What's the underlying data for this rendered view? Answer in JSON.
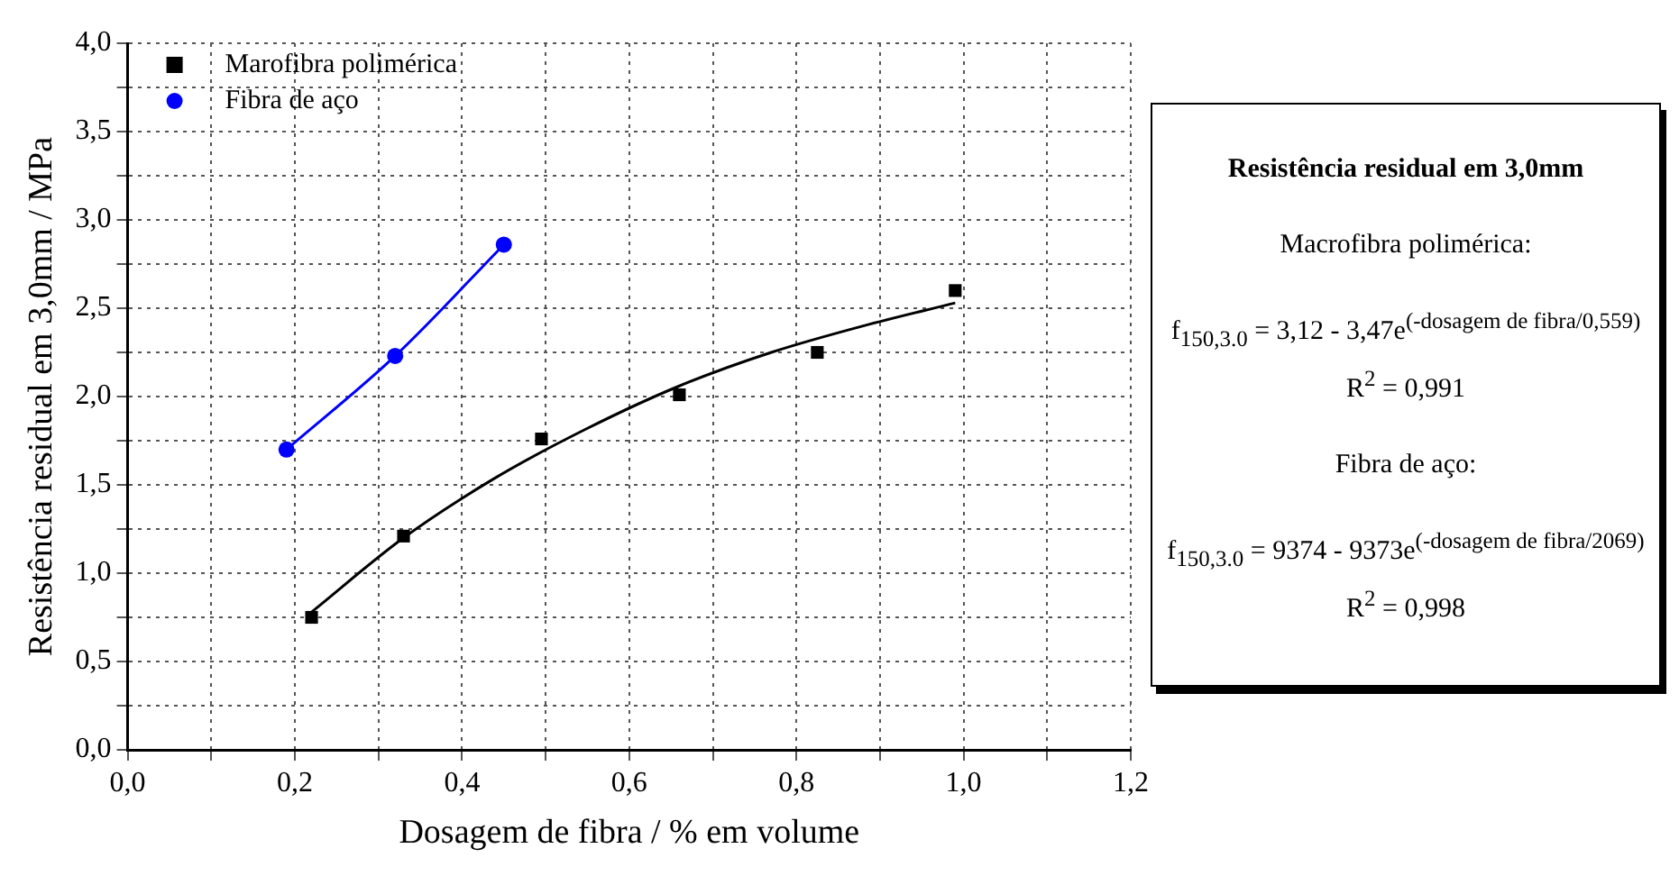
{
  "chart_data": {
    "type": "scatter",
    "xlabel": "Dosagem de fibra / % em volume",
    "ylabel": "Resistência residual em 3,0mm / MPa",
    "series": [
      {
        "name": "Marofibra polimérica",
        "color": "#000000",
        "marker": "square",
        "x": [
          0.22,
          0.33,
          0.495,
          0.66,
          0.825,
          0.99
        ],
        "values": [
          0.75,
          1.21,
          1.76,
          2.01,
          2.25,
          2.6
        ]
      },
      {
        "type": "line",
        "color": "#000000",
        "marker": "none",
        "x": [
          0.22,
          0.33,
          0.44,
          0.55,
          0.66,
          0.77,
          0.88,
          0.99
        ],
        "values": [
          0.78,
          1.2,
          1.54,
          1.82,
          2.06,
          2.25,
          2.4,
          2.53
        ]
      },
      {
        "name": "Fibra de aço",
        "type": "line",
        "color": "#0000ff",
        "marker": "circle",
        "x": [
          0.19,
          0.32,
          0.45
        ],
        "values": [
          1.7,
          2.23,
          2.86
        ]
      }
    ],
    "xlim": [
      0,
      1.2
    ],
    "xticks": [
      {
        "value": 0,
        "label": "0,0"
      },
      {
        "value": 0.1,
        "label": null
      },
      {
        "value": 0.2,
        "label": "0,2"
      },
      {
        "value": 0.3,
        "label": null
      },
      {
        "value": 0.4,
        "label": "0,4"
      },
      {
        "value": 0.5,
        "label": null
      },
      {
        "value": 0.6,
        "label": "0,6"
      },
      {
        "value": 0.7,
        "label": null
      },
      {
        "value": 0.8,
        "label": "0,8"
      },
      {
        "value": 0.9,
        "label": null
      },
      {
        "value": 1,
        "label": "1,0"
      },
      {
        "value": 1.1,
        "label": null
      },
      {
        "value": 1.2,
        "label": "1,2"
      }
    ],
    "ylim": [
      0,
      4
    ],
    "yticks": [
      {
        "value": 0,
        "label": "0,0"
      },
      {
        "value": 0.25,
        "label": null
      },
      {
        "value": 0.5,
        "label": "0,5"
      },
      {
        "value": 0.75,
        "label": null
      },
      {
        "value": 1,
        "label": "1,0"
      },
      {
        "value": 1.25,
        "label": null
      },
      {
        "value": 1.5,
        "label": "1,5"
      },
      {
        "value": 1.75,
        "label": null
      },
      {
        "value": 2,
        "label": "2,0"
      },
      {
        "value": 2.25,
        "label": null
      },
      {
        "value": 2.5,
        "label": "2,5"
      },
      {
        "value": 2.75,
        "label": null
      },
      {
        "value": 3,
        "label": "3,0"
      },
      {
        "value": 3.25,
        "label": null
      },
      {
        "value": 3.5,
        "label": "3,5"
      },
      {
        "value": 3.75,
        "label": null
      },
      {
        "value": 4,
        "label": "4,0"
      }
    ],
    "grid": true,
    "legend": "top left",
    "annotations": [
      "Resistência residual em 3,0mm",
      "Macrofibra polimérica:",
      "f$_{150,3.0}$ = 3,12 - 3,47e$^{(-dosagem de fibra/0,559)}$",
      "R$^{2}$ = 0,991",
      "Fibra de aço:",
      "f$_{150,3.0}$ = 9374 - 9373e$^{(-dosagem de fibra/2069)}$",
      "R$^{2}$ = 0,998"
    ]
  }
}
